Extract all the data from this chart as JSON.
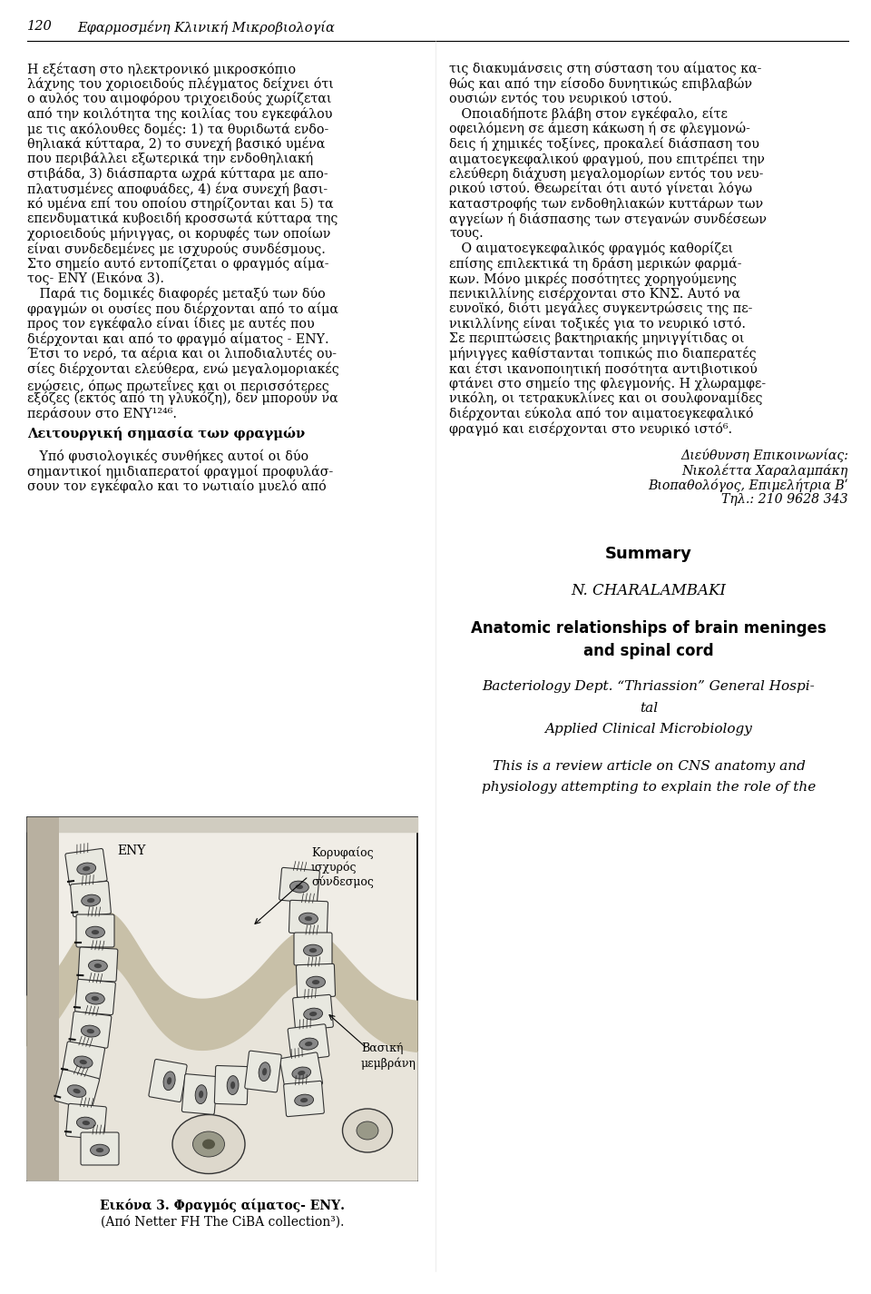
{
  "background_color": "#ffffff",
  "page_width": 9.6,
  "page_height": 14.25,
  "header_number": "120",
  "header_title": "Εφαρμοσμένη Κλινική Μικροβιολογία",
  "left_body_text": [
    "Η εξέταση στο ηλεκτρονικό μικροσκόπιο",
    "λάχνης του χοριοειδούς πλέγματος δείχνει ότι",
    "ο αυλός του αιμοφόρου τριχοειδούς χωρίζεται",
    "από την κοιλότητα της κοιλίας του εγκεφάλου",
    "με τις ακόλουθες δομές: 1) τα θυριδωτά ενδο-",
    "θηλιακά κύτταρα, 2) το συνεχή βασικό υμένα",
    "που περιβάλλει εξωτερικά την ενδοθηλιακή",
    "στιβάδα, 3) διάσπαρτα ωχρά κύτταρα με απο-",
    "πλατυσμένες αποφυάδες, 4) ένα συνεχή βασι-",
    "κό υμένα επί του οποίου στηρίζονται και 5) τα",
    "επενδυματικά κυβοειδή κροσσωτά κύτταρα της",
    "χοριοειδούς μήνιγγας, οι κορυφές των οποίων",
    "είναι συνδεδεμένες με ισχυρούς συνδέσμους.",
    "Στο σημείο αυτό εντοπίζεται ο φραγμός αίμα-",
    "τος- ΕΝΥ (Εικόνα 3).",
    "   Παρά τις δομικές διαφορές μεταξύ των δύο",
    "φραγμών οι ουσίες που διέρχονται από το αίμα",
    "προς τον εγκέφαλο είναι ίδιες με αυτές που",
    "διέρχονται και από το φραγμό αίματος - ΕΝΥ.",
    "Έτσι το νερό, τα αέρια και οι λιποδιαλυτές ου-",
    "σίες διέρχονται ελεύθερα, ενώ μεγαλομοριακές",
    "ενώσεις, όπως πρωτεΐνες και οι περισσότερες",
    "εξόζες (εκτός από τη γλυκόζη), δεν μπορούν να",
    "περάσουν στο ΕΝΥ¹²⁴⁶."
  ],
  "right_col_text_top": [
    "τις διακυμάνσεις στη σύσταση του αίματος κα-",
    "θώς και από την είσοδο δυνητικώς επιβλαβών",
    "ουσιών εντός του νευρικού ιστού.",
    "   Οποιαδήποτε βλάβη στον εγκέφαλο, είτε",
    "οφειλόμενη σε άμεση κάκωση ή σε φλεγμονώ-",
    "δεις ή χημικές τοξίνες, προκαλεί διάσπαση του",
    "αιματοεγκεφαλικού φραγμού, που επιτρέπει την",
    "ελεύθερη διάχυση μεγαλομορίων εντός του νευ-",
    "ρικού ιστού. Θεωρείται ότι αυτό γίνεται λόγω",
    "καταστροφής των ενδοθηλιακών κυττάρων των",
    "αγγείων ή διάσπασης των στεγανών συνδέσεων",
    "τους.",
    "   Ο αιματοεγκεφαλικός φραγμός καθορίζει",
    "επίσης επιλεκτικά τη δράση μερικών φαρμά-",
    "κων. Μόνο μικρές ποσότητες χορηγούμενης",
    "πενικιλλίνης εισέρχονται στο ΚΝΣ. Αυτό να",
    "ευνοϊκό, διότι μεγάλες συγκεντρώσεις της πε-",
    "νικιλλίνης είναι τοξικές για το νευρικό ιστό.",
    "Σε περιπτώσεις βακτηριακής μηνιγγίτιδας οι",
    "μήνιγγες καθίστανται τοπικώς πιο διαπερατές",
    "και έτσι ικανοποιητική ποσότητα αντιβιοτικού",
    "φτάνει στο σημείο της φλεγμονής. Η χλωραμφε-",
    "νικόλη, οι τετρακυκλίνες και οι σουλφοναμίδες",
    "διέρχονται εύκολα από τον αιματοεγκεφαλικό",
    "φραγμό και εισέρχονται στο νευρικό ιστό⁶."
  ],
  "contact_lines": [
    "Διεύθυνση Επικοινωνίας:",
    "Νικολέττα Χαραλαμπάκη",
    "Βιοπαθολόγος, Επιμελήτρια Βʹ",
    "Τηλ.: 210 9628 343"
  ],
  "left_section_title": "Λειτουργική σημασία των φραγμών",
  "left_section_body": [
    "   Υπό φυσιολογικές συνθήκες αυτοί οι δύο",
    "σημαντικοί ημιδιαπερατοί φραγμοί προφυλάσ-",
    "σουν τον εγκέφαλο και το νωτιαίο μυελό από"
  ],
  "summary_title": "Summary",
  "summary_name": "N. CHARALAMBAKI",
  "summary_subtitle_line1": "Anatomic relationships of brain meninges",
  "summary_subtitle_line2": "and spinal cord",
  "summary_dept1": "Bacteriology Dept. “Thriassion” General Hospi-",
  "summary_dept2": "tal",
  "summary_dept3": "Applied Clinical Microbiology",
  "summary_body1": "This is a review article on CNS anatomy and",
  "summary_body2": "physiology attempting to explain the role of the",
  "figure_caption1": "Εικόνα 3. Φραγμός αίματος- ΕΝΥ.",
  "figure_caption2": "(Από Netter FH The CiBA collection³).",
  "fig_label_eny": "ΕΝΥ",
  "fig_label_korifaios": "Κορυφαίος",
  "fig_label_ischyros": "ισχυρός",
  "fig_label_syndesmos": "σύνδεσμος",
  "fig_label_vasiki": "Βασική",
  "fig_label_memvrani": "μεμβράνη"
}
